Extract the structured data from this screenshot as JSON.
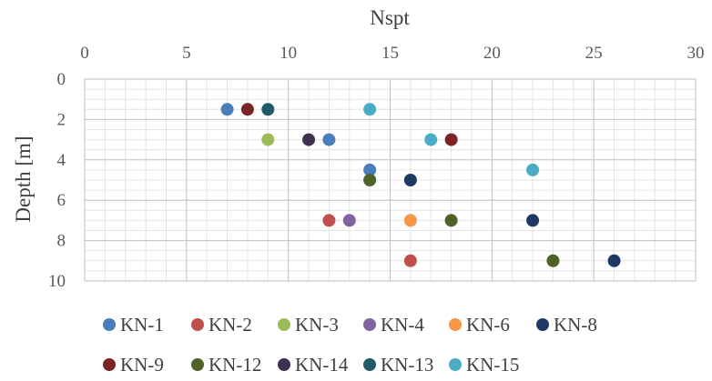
{
  "chart_data": {
    "type": "scatter",
    "xlabel": "Nspt",
    "ylabel": "Depth [m]",
    "xlim": [
      0,
      30
    ],
    "ylim": [
      0,
      10
    ],
    "x_ticks": [
      0,
      5,
      10,
      15,
      20,
      25,
      30
    ],
    "y_ticks": [
      0,
      2,
      4,
      6,
      8,
      10
    ],
    "x_axis_position": "top",
    "y_axis_inverted": true,
    "grid": "major and minor",
    "legend_position": "bottom",
    "series": [
      {
        "name": "KN-1",
        "color": "#4a7ebb",
        "points": [
          {
            "x": 7,
            "y": 1.5
          },
          {
            "x": 12,
            "y": 3
          },
          {
            "x": 14,
            "y": 4.5
          }
        ]
      },
      {
        "name": "KN-2",
        "color": "#c0504d",
        "points": [
          {
            "x": 12,
            "y": 7
          },
          {
            "x": 16,
            "y": 9
          }
        ]
      },
      {
        "name": "KN-3",
        "color": "#9bbb59",
        "points": [
          {
            "x": 9,
            "y": 3
          }
        ]
      },
      {
        "name": "KN-4",
        "color": "#8064a2",
        "points": [
          {
            "x": 13,
            "y": 7
          }
        ]
      },
      {
        "name": "KN-6",
        "color": "#f79646",
        "points": [
          {
            "x": 16,
            "y": 7
          }
        ]
      },
      {
        "name": "KN-8",
        "color": "#1f3864",
        "points": [
          {
            "x": 16,
            "y": 5
          },
          {
            "x": 22,
            "y": 7
          },
          {
            "x": 26,
            "y": 9
          }
        ]
      },
      {
        "name": "KN-9",
        "color": "#7b2424",
        "points": [
          {
            "x": 8,
            "y": 1.5
          },
          {
            "x": 18,
            "y": 3
          }
        ]
      },
      {
        "name": "KN-12",
        "color": "#4f6228",
        "points": [
          {
            "x": 14,
            "y": 5
          },
          {
            "x": 18,
            "y": 7
          },
          {
            "x": 23,
            "y": 9
          }
        ]
      },
      {
        "name": "KN-14",
        "color": "#3f3151",
        "points": [
          {
            "x": 11,
            "y": 3
          }
        ]
      },
      {
        "name": "KN-13",
        "color": "#215967",
        "points": [
          {
            "x": 9,
            "y": 1.5
          }
        ]
      },
      {
        "name": "KN-15",
        "color": "#4bacc6",
        "points": [
          {
            "x": 14,
            "y": 1.5
          },
          {
            "x": 17,
            "y": 3
          },
          {
            "x": 22,
            "y": 4.5
          }
        ]
      }
    ]
  }
}
